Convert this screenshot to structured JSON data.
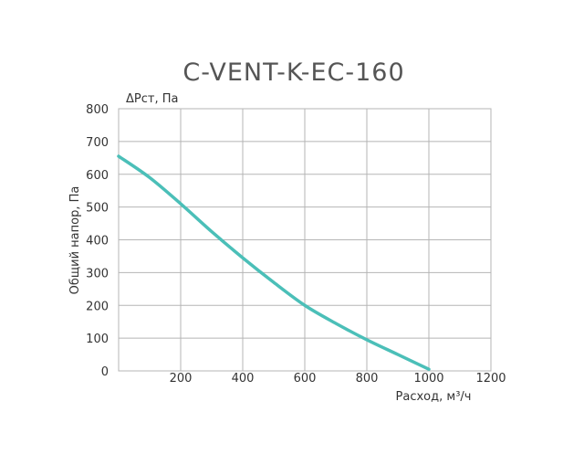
{
  "chart_data": {
    "type": "line",
    "title": "C-VENT-K-EC-160",
    "ylabel_top": "ΔPст, Па",
    "ylabel": "Общий напор, Па",
    "xlabel": "Расход, м³/ч",
    "xlim": [
      0,
      1200
    ],
    "ylim": [
      0,
      800
    ],
    "x_ticks": [
      "200",
      "400",
      "600",
      "800",
      "1000",
      "1200"
    ],
    "y_ticks": [
      "0",
      "100",
      "200",
      "300",
      "400",
      "500",
      "600",
      "700",
      "800"
    ],
    "grid": true,
    "series": [
      {
        "color": "#4bbfb8",
        "x": [
          0,
          100,
          200,
          300,
          400,
          500,
          600,
          700,
          800,
          900,
          1000
        ],
        "y": [
          655,
          590,
          510,
          425,
          345,
          270,
          200,
          145,
          95,
          50,
          5
        ]
      }
    ]
  }
}
